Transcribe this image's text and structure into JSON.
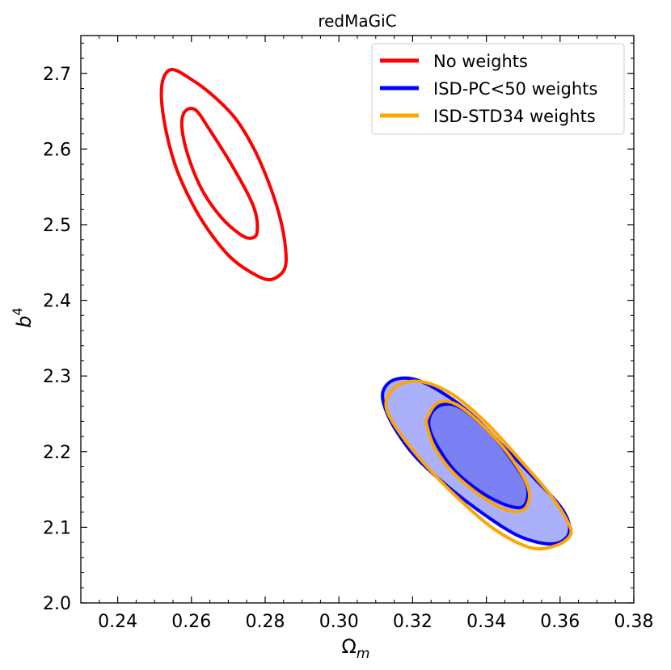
{
  "chart_data": {
    "type": "contour",
    "title": "redMaGiC",
    "xlabel": {
      "base": "Ω",
      "sub": "m"
    },
    "ylabel": {
      "base": "b",
      "sup": "4"
    },
    "xlim": [
      0.23,
      0.38
    ],
    "ylim": [
      2.0,
      2.75
    ],
    "x_ticks": [
      "0.24",
      "0.26",
      "0.28",
      "0.30",
      "0.32",
      "0.34",
      "0.36",
      "0.38"
    ],
    "y_ticks": [
      "2.0",
      "2.1",
      "2.2",
      "2.3",
      "2.4",
      "2.5",
      "2.6",
      "2.7"
    ],
    "x_tick_values": [
      0.24,
      0.26,
      0.28,
      0.3,
      0.32,
      0.34,
      0.36,
      0.38
    ],
    "y_tick_values": [
      2.0,
      2.1,
      2.2,
      2.3,
      2.4,
      2.5,
      2.6,
      2.7
    ],
    "legend_position": "top-right",
    "series": [
      {
        "name": "No weights",
        "color": "#ff0000",
        "filled": false,
        "contours": [
          {
            "level": "outer",
            "points": [
              [
                0.2545,
                2.705
              ],
              [
                0.26,
                2.692
              ],
              [
                0.266,
                2.67
              ],
              [
                0.272,
                2.64
              ],
              [
                0.277,
                2.6
              ],
              [
                0.281,
                2.555
              ],
              [
                0.284,
                2.51
              ],
              [
                0.2855,
                2.47
              ],
              [
                0.2853,
                2.442
              ],
              [
                0.282,
                2.428
              ],
              [
                0.278,
                2.432
              ],
              [
                0.271,
                2.455
              ],
              [
                0.265,
                2.49
              ],
              [
                0.26,
                2.53
              ],
              [
                0.2555,
                2.58
              ],
              [
                0.2525,
                2.64
              ],
              [
                0.252,
                2.685
              ]
            ]
          },
          {
            "level": "inner",
            "points": [
              [
                0.258,
                2.648
              ],
              [
                0.261,
                2.652
              ],
              [
                0.265,
                2.625
              ],
              [
                0.272,
                2.57
              ],
              [
                0.277,
                2.522
              ],
              [
                0.2778,
                2.49
              ],
              [
                0.276,
                2.482
              ],
              [
                0.273,
                2.488
              ],
              [
                0.268,
                2.51
              ],
              [
                0.263,
                2.545
              ],
              [
                0.2595,
                2.585
              ],
              [
                0.2575,
                2.625
              ]
            ]
          }
        ]
      },
      {
        "name": "ISD-PC<50 weights",
        "color": "#0000ff",
        "filled": true,
        "fill_outer": "#aab0fa",
        "fill_inner": "#7b80f5",
        "contours": [
          {
            "level": "outer",
            "points": [
              [
                0.312,
                2.28
              ],
              [
                0.315,
                2.295
              ],
              [
                0.321,
                2.295
              ],
              [
                0.329,
                2.275
              ],
              [
                0.337,
                2.245
              ],
              [
                0.345,
                2.205
              ],
              [
                0.353,
                2.165
              ],
              [
                0.36,
                2.128
              ],
              [
                0.3625,
                2.103
              ],
              [
                0.3615,
                2.085
              ],
              [
                0.357,
                2.078
              ],
              [
                0.349,
                2.088
              ],
              [
                0.34,
                2.115
              ],
              [
                0.33,
                2.152
              ],
              [
                0.321,
                2.192
              ],
              [
                0.3155,
                2.228
              ],
              [
                0.3125,
                2.258
              ]
            ]
          },
          {
            "level": "inner",
            "points": [
              [
                0.325,
                2.25
              ],
              [
                0.328,
                2.262
              ],
              [
                0.333,
                2.258
              ],
              [
                0.341,
                2.225
              ],
              [
                0.347,
                2.188
              ],
              [
                0.351,
                2.155
              ],
              [
                0.3505,
                2.13
              ],
              [
                0.347,
                2.127
              ],
              [
                0.34,
                2.142
              ],
              [
                0.332,
                2.172
              ],
              [
                0.327,
                2.205
              ],
              [
                0.3245,
                2.232
              ]
            ]
          }
        ]
      },
      {
        "name": "ISD-STD34 weights",
        "color": "#ffa500",
        "filled": false,
        "contours": [
          {
            "level": "outer",
            "points": [
              [
                0.3135,
                2.275
              ],
              [
                0.317,
                2.29
              ],
              [
                0.323,
                2.292
              ],
              [
                0.331,
                2.275
              ],
              [
                0.34,
                2.238
              ],
              [
                0.349,
                2.19
              ],
              [
                0.357,
                2.145
              ],
              [
                0.362,
                2.108
              ],
              [
                0.3628,
                2.09
              ],
              [
                0.359,
                2.076
              ],
              [
                0.352,
                2.073
              ],
              [
                0.342,
                2.098
              ],
              [
                0.332,
                2.14
              ],
              [
                0.323,
                2.185
              ],
              [
                0.3165,
                2.225
              ],
              [
                0.313,
                2.255
              ]
            ]
          },
          {
            "level": "inner",
            "points": [
              [
                0.324,
                2.245
              ],
              [
                0.327,
                2.265
              ],
              [
                0.332,
                2.262
              ],
              [
                0.34,
                2.23
              ],
              [
                0.347,
                2.19
              ],
              [
                0.3515,
                2.15
              ],
              [
                0.3505,
                2.125
              ],
              [
                0.346,
                2.122
              ],
              [
                0.339,
                2.14
              ],
              [
                0.331,
                2.172
              ],
              [
                0.326,
                2.205
              ],
              [
                0.324,
                2.232
              ]
            ]
          }
        ]
      }
    ]
  }
}
